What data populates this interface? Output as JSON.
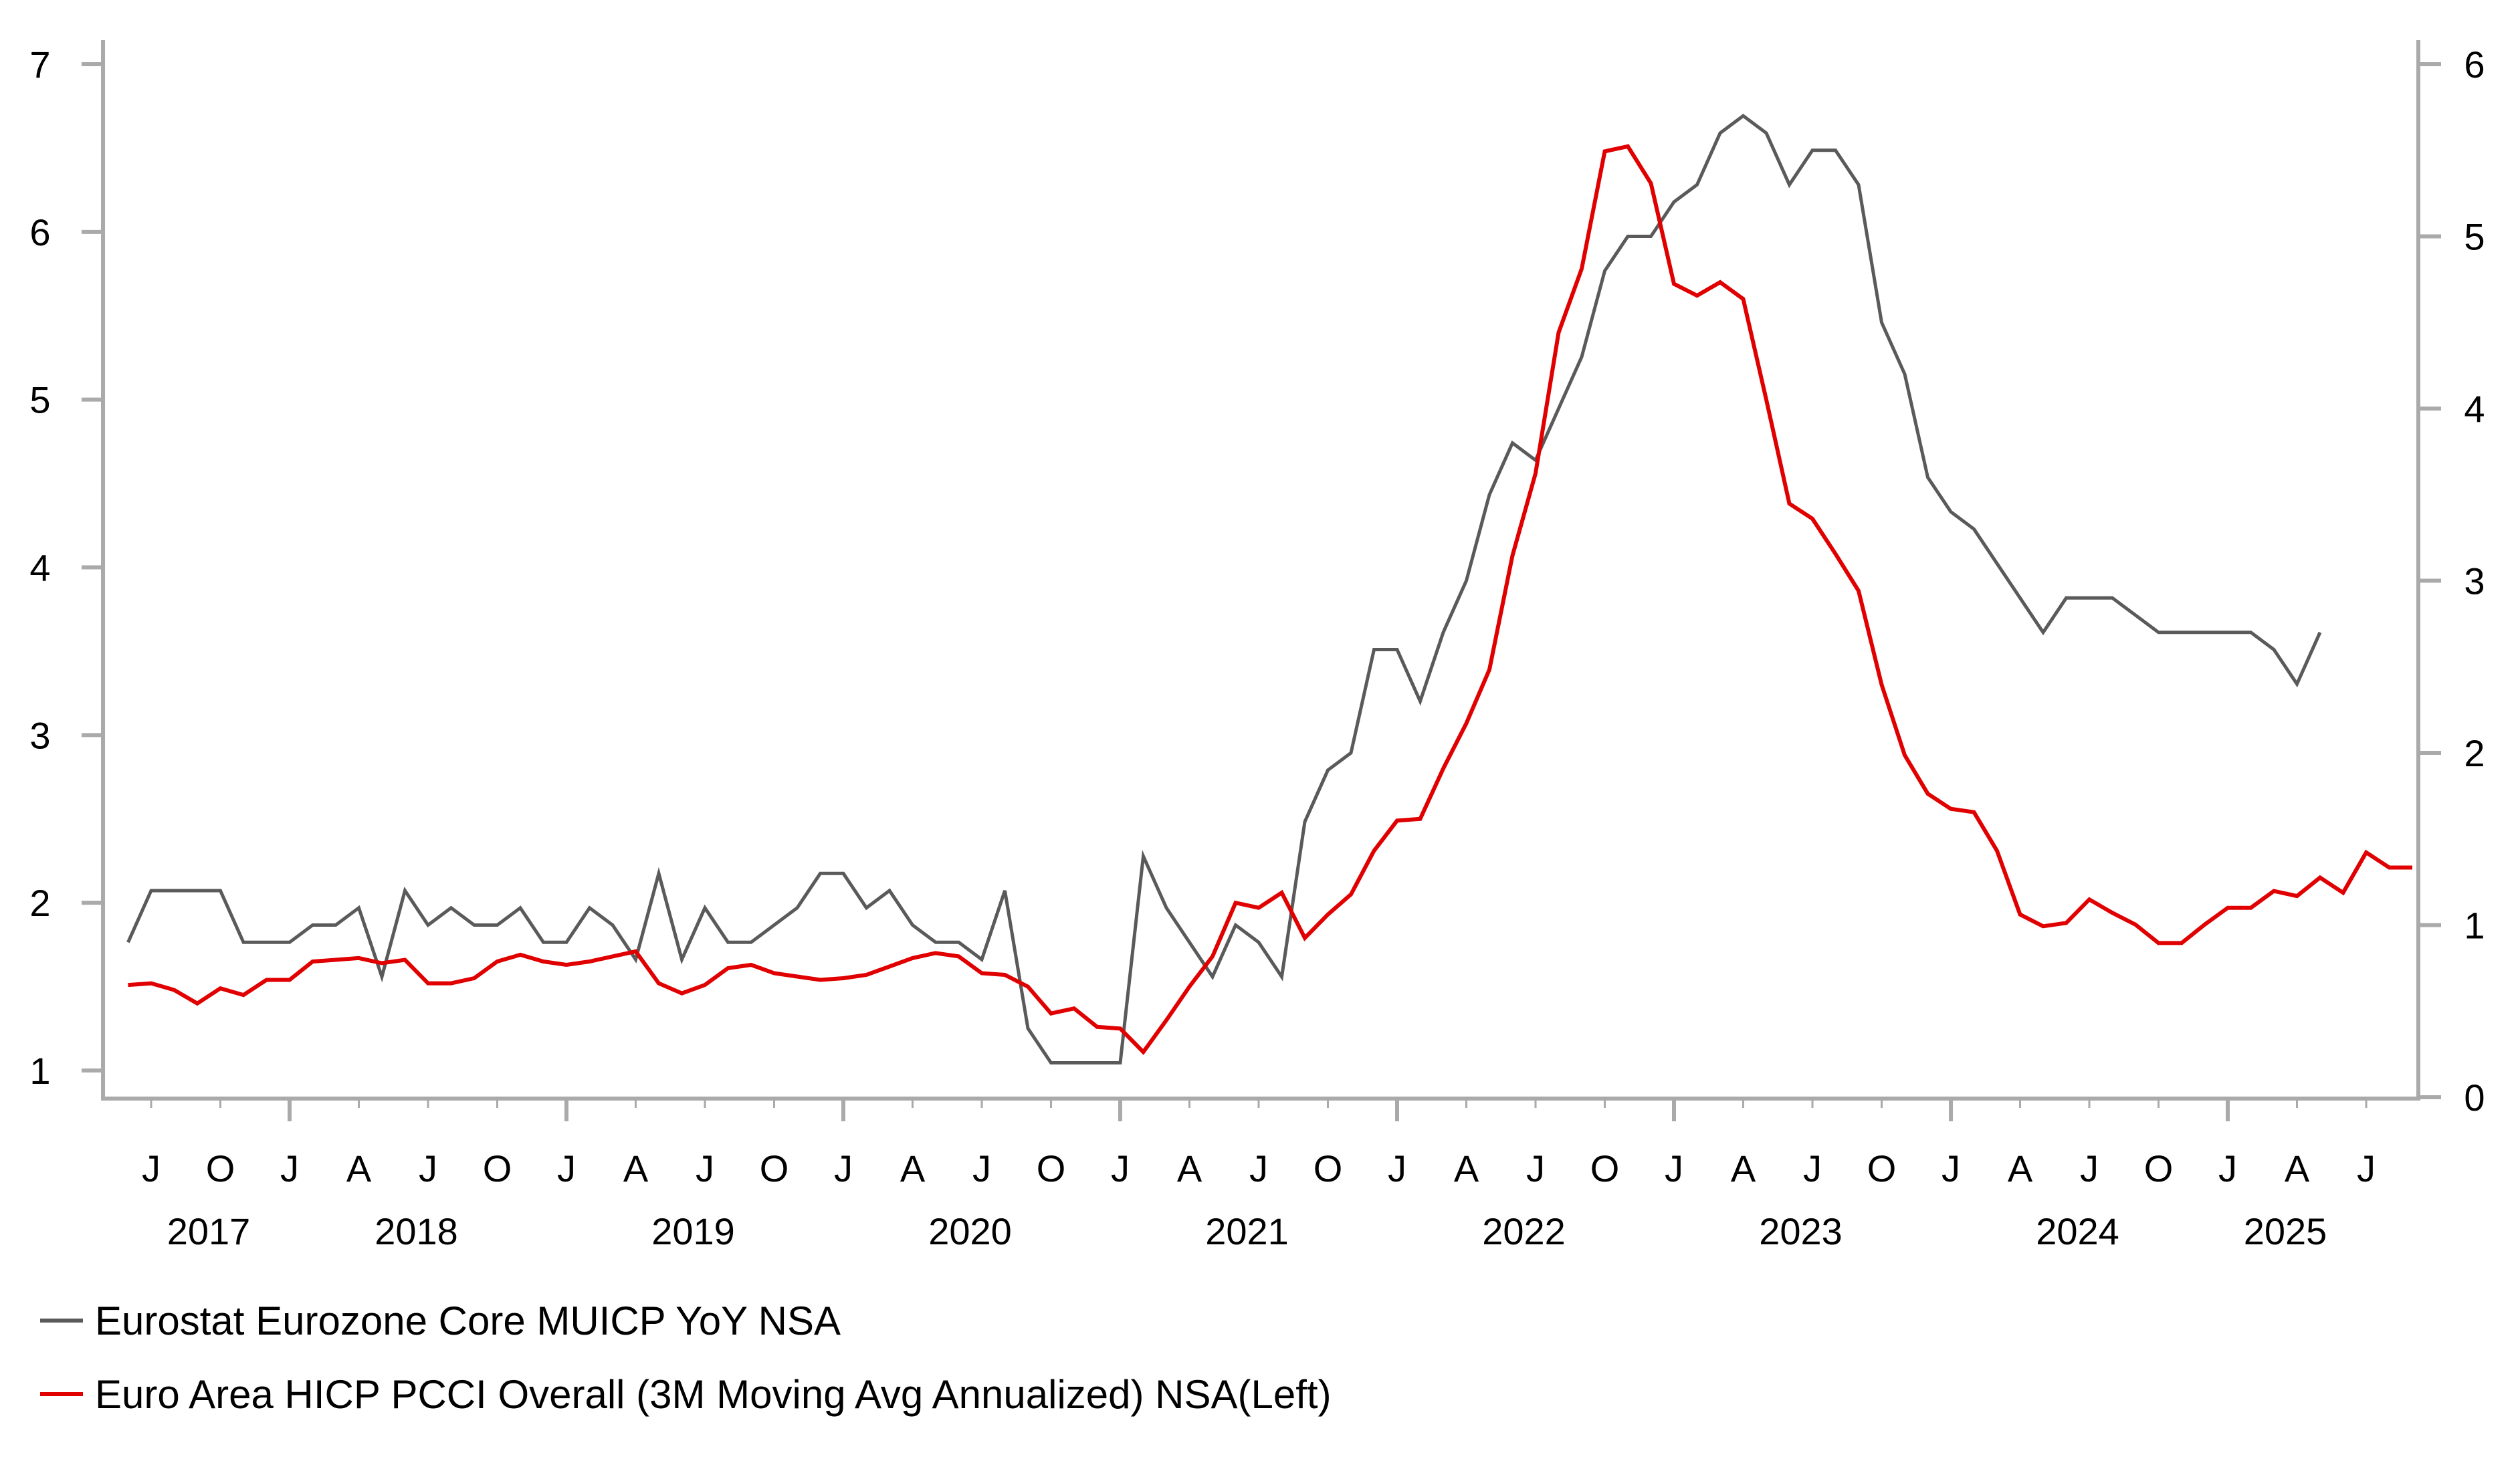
{
  "chart_data": {
    "type": "line",
    "title": "",
    "xlabel": "",
    "ylabel_left": "",
    "ylabel_right": "",
    "x_start": "2017-06",
    "x_end_axis": "2025-08",
    "left_axis": {
      "min": 1,
      "max": 7,
      "ticks": [
        1,
        2,
        3,
        4,
        5,
        6,
        7
      ]
    },
    "right_axis": {
      "min": 0,
      "max": 6,
      "ticks": [
        0,
        1,
        2,
        3,
        4,
        5,
        6
      ]
    },
    "x_ticks": {
      "month_labels": [
        {
          "m": "2017-07",
          "label": "J"
        },
        {
          "m": "2017-10",
          "label": "O"
        },
        {
          "m": "2018-01",
          "label": "J"
        },
        {
          "m": "2018-04",
          "label": "A"
        },
        {
          "m": "2018-07",
          "label": "J"
        },
        {
          "m": "2018-10",
          "label": "O"
        },
        {
          "m": "2019-01",
          "label": "J"
        },
        {
          "m": "2019-04",
          "label": "A"
        },
        {
          "m": "2019-07",
          "label": "J"
        },
        {
          "m": "2019-10",
          "label": "O"
        },
        {
          "m": "2020-01",
          "label": "J"
        },
        {
          "m": "2020-04",
          "label": "A"
        },
        {
          "m": "2020-07",
          "label": "J"
        },
        {
          "m": "2020-10",
          "label": "O"
        },
        {
          "m": "2021-01",
          "label": "J"
        },
        {
          "m": "2021-04",
          "label": "A"
        },
        {
          "m": "2021-07",
          "label": "J"
        },
        {
          "m": "2021-10",
          "label": "O"
        },
        {
          "m": "2022-01",
          "label": "J"
        },
        {
          "m": "2022-04",
          "label": "A"
        },
        {
          "m": "2022-07",
          "label": "J"
        },
        {
          "m": "2022-10",
          "label": "O"
        },
        {
          "m": "2023-01",
          "label": "J"
        },
        {
          "m": "2023-04",
          "label": "A"
        },
        {
          "m": "2023-07",
          "label": "J"
        },
        {
          "m": "2023-10",
          "label": "O"
        },
        {
          "m": "2024-01",
          "label": "J"
        },
        {
          "m": "2024-04",
          "label": "A"
        },
        {
          "m": "2024-07",
          "label": "J"
        },
        {
          "m": "2024-10",
          "label": "O"
        },
        {
          "m": "2025-01",
          "label": "J"
        },
        {
          "m": "2025-04",
          "label": "A"
        },
        {
          "m": "2025-07",
          "label": "J"
        }
      ],
      "year_labels": [
        {
          "m": "2017-09",
          "label": "2017"
        },
        {
          "m": "2018-06",
          "label": "2018"
        },
        {
          "m": "2019-06",
          "label": "2019"
        },
        {
          "m": "2020-06",
          "label": "2020"
        },
        {
          "m": "2021-06",
          "label": "2021"
        },
        {
          "m": "2022-06",
          "label": "2022"
        },
        {
          "m": "2023-06",
          "label": "2023"
        },
        {
          "m": "2024-06",
          "label": "2024"
        },
        {
          "m": "2025-03",
          "label": "2025"
        }
      ]
    },
    "series": [
      {
        "name": "Eurostat Eurozone Core MUICP YoY NSA",
        "axis": "right",
        "color": "#5a5a5a",
        "start": "2017-06",
        "values": [
          0.9,
          1.2,
          1.2,
          1.2,
          1.2,
          0.9,
          0.9,
          0.9,
          1.0,
          1.0,
          1.1,
          0.7,
          1.2,
          1.0,
          1.1,
          1.0,
          1.0,
          1.1,
          0.9,
          0.9,
          1.1,
          1.0,
          0.8,
          1.3,
          0.8,
          1.1,
          0.9,
          0.9,
          1.0,
          1.1,
          1.3,
          1.3,
          1.1,
          1.2,
          1.0,
          0.9,
          0.9,
          0.8,
          1.2,
          0.4,
          0.2,
          0.2,
          0.2,
          0.2,
          1.4,
          1.1,
          0.9,
          0.7,
          1.0,
          0.9,
          0.7,
          1.6,
          1.9,
          2.0,
          2.6,
          2.6,
          2.3,
          2.7,
          3.0,
          3.5,
          3.8,
          3.7,
          4.0,
          4.3,
          4.8,
          5.0,
          5.0,
          5.2,
          5.3,
          5.6,
          5.7,
          5.6,
          5.3,
          5.5,
          5.5,
          5.3,
          4.5,
          4.2,
          3.6,
          3.4,
          3.3,
          3.1,
          2.9,
          2.7,
          2.9,
          2.9,
          2.9,
          2.8,
          2.7,
          2.7,
          2.7,
          2.7,
          2.7,
          2.6,
          2.4,
          2.7
        ]
      },
      {
        "name": "Euro Area HICP PCCI Overall (3M Moving Avg Annualized) NSA(Left)",
        "axis": "left",
        "color": "#e00000",
        "start": "2017-06",
        "values": [
          1.51,
          1.52,
          1.48,
          1.4,
          1.49,
          1.45,
          1.54,
          1.54,
          1.65,
          1.66,
          1.67,
          1.64,
          1.66,
          1.52,
          1.52,
          1.55,
          1.65,
          1.69,
          1.65,
          1.63,
          1.65,
          1.68,
          1.71,
          1.52,
          1.46,
          1.51,
          1.61,
          1.63,
          1.58,
          1.56,
          1.54,
          1.55,
          1.57,
          1.62,
          1.67,
          1.7,
          1.68,
          1.58,
          1.57,
          1.5,
          1.34,
          1.37,
          1.26,
          1.25,
          1.11,
          1.3,
          1.5,
          1.68,
          2.0,
          1.97,
          2.06,
          1.79,
          1.93,
          2.05,
          2.31,
          2.49,
          2.5,
          2.8,
          3.07,
          3.39,
          4.07,
          4.56,
          5.4,
          5.78,
          6.48,
          6.51,
          6.29,
          5.69,
          5.62,
          5.7,
          5.6,
          5.0,
          4.38,
          4.29,
          4.08,
          3.86,
          3.3,
          2.88,
          2.65,
          2.56,
          2.54,
          2.31,
          1.93,
          1.86,
          1.88,
          2.02,
          1.94,
          1.87,
          1.76,
          1.76,
          1.87,
          1.97,
          1.97,
          2.07,
          2.04,
          2.15,
          2.06,
          2.3,
          2.21,
          2.21
        ]
      }
    ],
    "legend_position": "bottom-left",
    "grid": false
  },
  "legend": {
    "items": [
      {
        "label": "Eurostat Eurozone Core MUICP YoY NSA",
        "color": "#5a5a5a"
      },
      {
        "label": "Euro Area HICP PCCI Overall (3M Moving Avg Annualized) NSA(Left)",
        "color": "#e00000"
      }
    ]
  },
  "colors": {
    "axis": "#aaaaaa"
  }
}
